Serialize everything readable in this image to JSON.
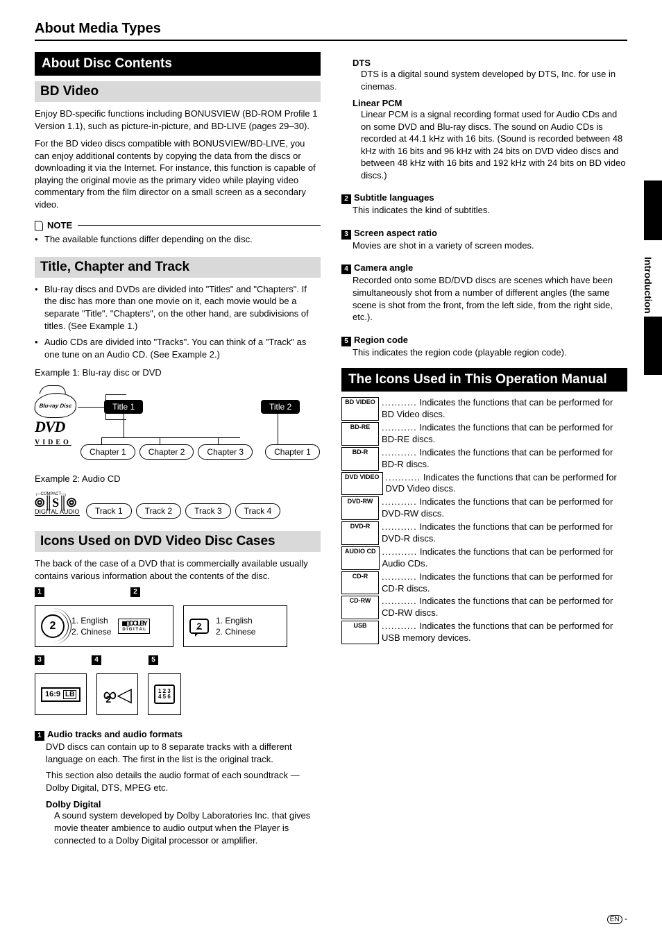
{
  "page_title": "About Media Types",
  "side_tab": "Introduction",
  "section_about_disc_contents": "About Disc Contents",
  "bd_video": {
    "heading": "BD Video",
    "p1": "Enjoy BD-specific functions including BONUSVIEW (BD-ROM Profile 1 Version 1.1), such as picture-in-picture, and BD-LIVE (pages 29–30).",
    "p2": "For the BD video discs compatible with BONUSVIEW/BD-LIVE, you can enjoy additional contents by copying the data from the discs or downloading it via the Internet. For instance, this function is capable of playing the original movie as the primary video while playing video commentary from the film director on a small screen as a secondary video.",
    "note_label": "NOTE",
    "note_item": "The available functions differ depending on the disc."
  },
  "title_chapter_track": {
    "heading": "Title, Chapter and Track",
    "b1": "Blu-ray discs and DVDs are divided into \"Titles\" and \"Chapters\". If the disc has more than one movie on it, each movie would be a separate \"Title\". \"Chapters\", on the other hand, are subdivisions of titles. (See Example 1.)",
    "b2": "Audio CDs are divided into \"Tracks\". You can think of a \"Track\" as one tune on an Audio CD. (See Example 2.)",
    "ex1_label": "Example 1: Blu-ray disc or DVD",
    "ex2_label": "Example 2: Audio CD",
    "title1": "Title 1",
    "title2": "Title 2",
    "chapter1": "Chapter 1",
    "chapter2": "Chapter 2",
    "chapter3": "Chapter 3",
    "chapter1b": "Chapter 1",
    "track1": "Track 1",
    "track2": "Track 2",
    "track3": "Track 3",
    "track4": "Track 4",
    "bluray_logo_text": "Blu-ray Disc",
    "dvd_text": "DVD",
    "dvd_video": "VIDEO"
  },
  "icons_dvd_cases": {
    "heading": "Icons Used on DVD Video Disc Cases",
    "intro": "The back of the case of a DVD that is commercially available usually contains various information about the contents of the disc.",
    "lang1_1": "1. English",
    "lang1_2": "2. Chinese",
    "lang2_1": "1. English",
    "lang2_2": "2. Chinese",
    "dolby_top": "◼▯ DOLBY",
    "dolby_bottom": "D I G I T A L",
    "speech_num": "2",
    "aspect": "16:9",
    "aspect_lb": "LB",
    "camera_num": "2",
    "region_top": "1 2 3",
    "region_bottom": "4 5 6",
    "audio_num": "2",
    "item1_head": "Audio tracks and audio formats",
    "item1_p1": "DVD discs can contain up to 8 separate tracks with a different language on each. The first in the list is the original track.",
    "item1_p2": "This section also details the audio format of each soundtrack — Dolby Digital, DTS, MPEG etc.",
    "dolby_head": "Dolby Digital",
    "dolby_text": "A sound system developed by Dolby Laboratories Inc. that gives movie theater ambience to audio output when the Player is connected to a Dolby Digital processor or amplifier."
  },
  "right_col": {
    "dts_head": "DTS",
    "dts_text": "DTS is a digital sound system developed by DTS, Inc. for use in cinemas.",
    "lpcm_head": "Linear PCM",
    "lpcm_text": "Linear PCM is a signal recording format used for Audio CDs and on some DVD and Blu-ray discs. The sound on Audio CDs is recorded at 44.1 kHz with 16 bits. (Sound is recorded between 48 kHz with 16 bits and 96 kHz with 24 bits on DVD video discs and between 48 kHz with 16 bits and 192 kHz with 24 bits on BD video discs.)",
    "sub_head": "Subtitle languages",
    "sub_text": "This indicates the kind of subtitles.",
    "aspect_head": "Screen aspect ratio",
    "aspect_text": "Movies are shot in a variety of screen modes.",
    "cam_head": "Camera angle",
    "cam_text": "Recorded onto some BD/DVD discs are scenes which have been simultaneously shot from a number of different angles (the same scene is shot from the front, from the left side, from the right side, etc.).",
    "region_head": "Region code",
    "region_text": "This indicates the region code (playable region code)."
  },
  "icons_manual": {
    "heading": "The Icons Used in This Operation Manual",
    "rows": [
      {
        "tag": "BD VIDEO",
        "text": "Indicates the functions that can be performed for BD Video discs."
      },
      {
        "tag": "BD-RE",
        "text": "Indicates the functions that can be performed for BD-RE discs."
      },
      {
        "tag": "BD-R",
        "text": "Indicates the functions that can be performed for BD-R discs."
      },
      {
        "tag": "DVD VIDEO",
        "text": "Indicates the functions that can be performed for DVD Video discs."
      },
      {
        "tag": "DVD-RW",
        "text": "Indicates the functions that can be performed for DVD-RW discs."
      },
      {
        "tag": "DVD-R",
        "text": "Indicates the functions that can be performed for DVD-R discs."
      },
      {
        "tag": "AUDIO CD",
        "text": "Indicates the functions that can be performed for Audio CDs."
      },
      {
        "tag": "CD-R",
        "text": "Indicates the functions that can be performed for CD-R discs."
      },
      {
        "tag": "CD-RW",
        "text": "Indicates the functions that can be performed for CD-RW discs."
      },
      {
        "tag": "USB",
        "text": "Indicates the functions that can be performed for USB memory devices."
      }
    ]
  },
  "footer": {
    "en": "EN",
    "dash": " - "
  }
}
